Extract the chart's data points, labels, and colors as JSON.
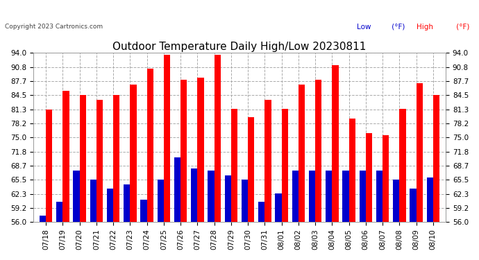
{
  "title": "Outdoor Temperature Daily High/Low 20230811",
  "copyright": "Copyright 2023 Cartronics.com",
  "legend_low": "Low",
  "legend_low_unit": " (°F)",
  "legend_high": "High",
  "legend_high_unit": " (°F)",
  "dates": [
    "07/18",
    "07/19",
    "07/20",
    "07/21",
    "07/22",
    "07/23",
    "07/24",
    "07/25",
    "07/26",
    "07/27",
    "07/28",
    "07/29",
    "07/30",
    "07/31",
    "08/01",
    "08/02",
    "08/03",
    "08/04",
    "08/05",
    "08/06",
    "08/07",
    "08/08",
    "08/09",
    "08/10"
  ],
  "highs": [
    81.3,
    85.5,
    84.5,
    83.5,
    84.5,
    86.8,
    90.5,
    93.5,
    88.0,
    88.5,
    93.5,
    81.5,
    79.5,
    83.5,
    81.5,
    86.8,
    88.0,
    91.2,
    79.2,
    76.0,
    75.5,
    81.5,
    87.2,
    84.5
  ],
  "lows": [
    57.5,
    60.5,
    67.5,
    65.5,
    63.5,
    64.5,
    61.0,
    65.5,
    70.5,
    68.0,
    67.5,
    66.5,
    65.5,
    60.5,
    62.5,
    67.5,
    67.5,
    67.5,
    67.5,
    67.5,
    67.5,
    65.5,
    63.5,
    66.0
  ],
  "ylim": [
    56.0,
    94.0
  ],
  "yticks": [
    56.0,
    59.2,
    62.3,
    65.5,
    68.7,
    71.8,
    75.0,
    78.2,
    81.3,
    84.5,
    87.7,
    90.8,
    94.0
  ],
  "high_color": "#ff0000",
  "low_color": "#0000cc",
  "bg_color": "#ffffff",
  "grid_color": "#aaaaaa",
  "title_fontsize": 11,
  "tick_fontsize": 7.5,
  "bar_width": 0.38
}
